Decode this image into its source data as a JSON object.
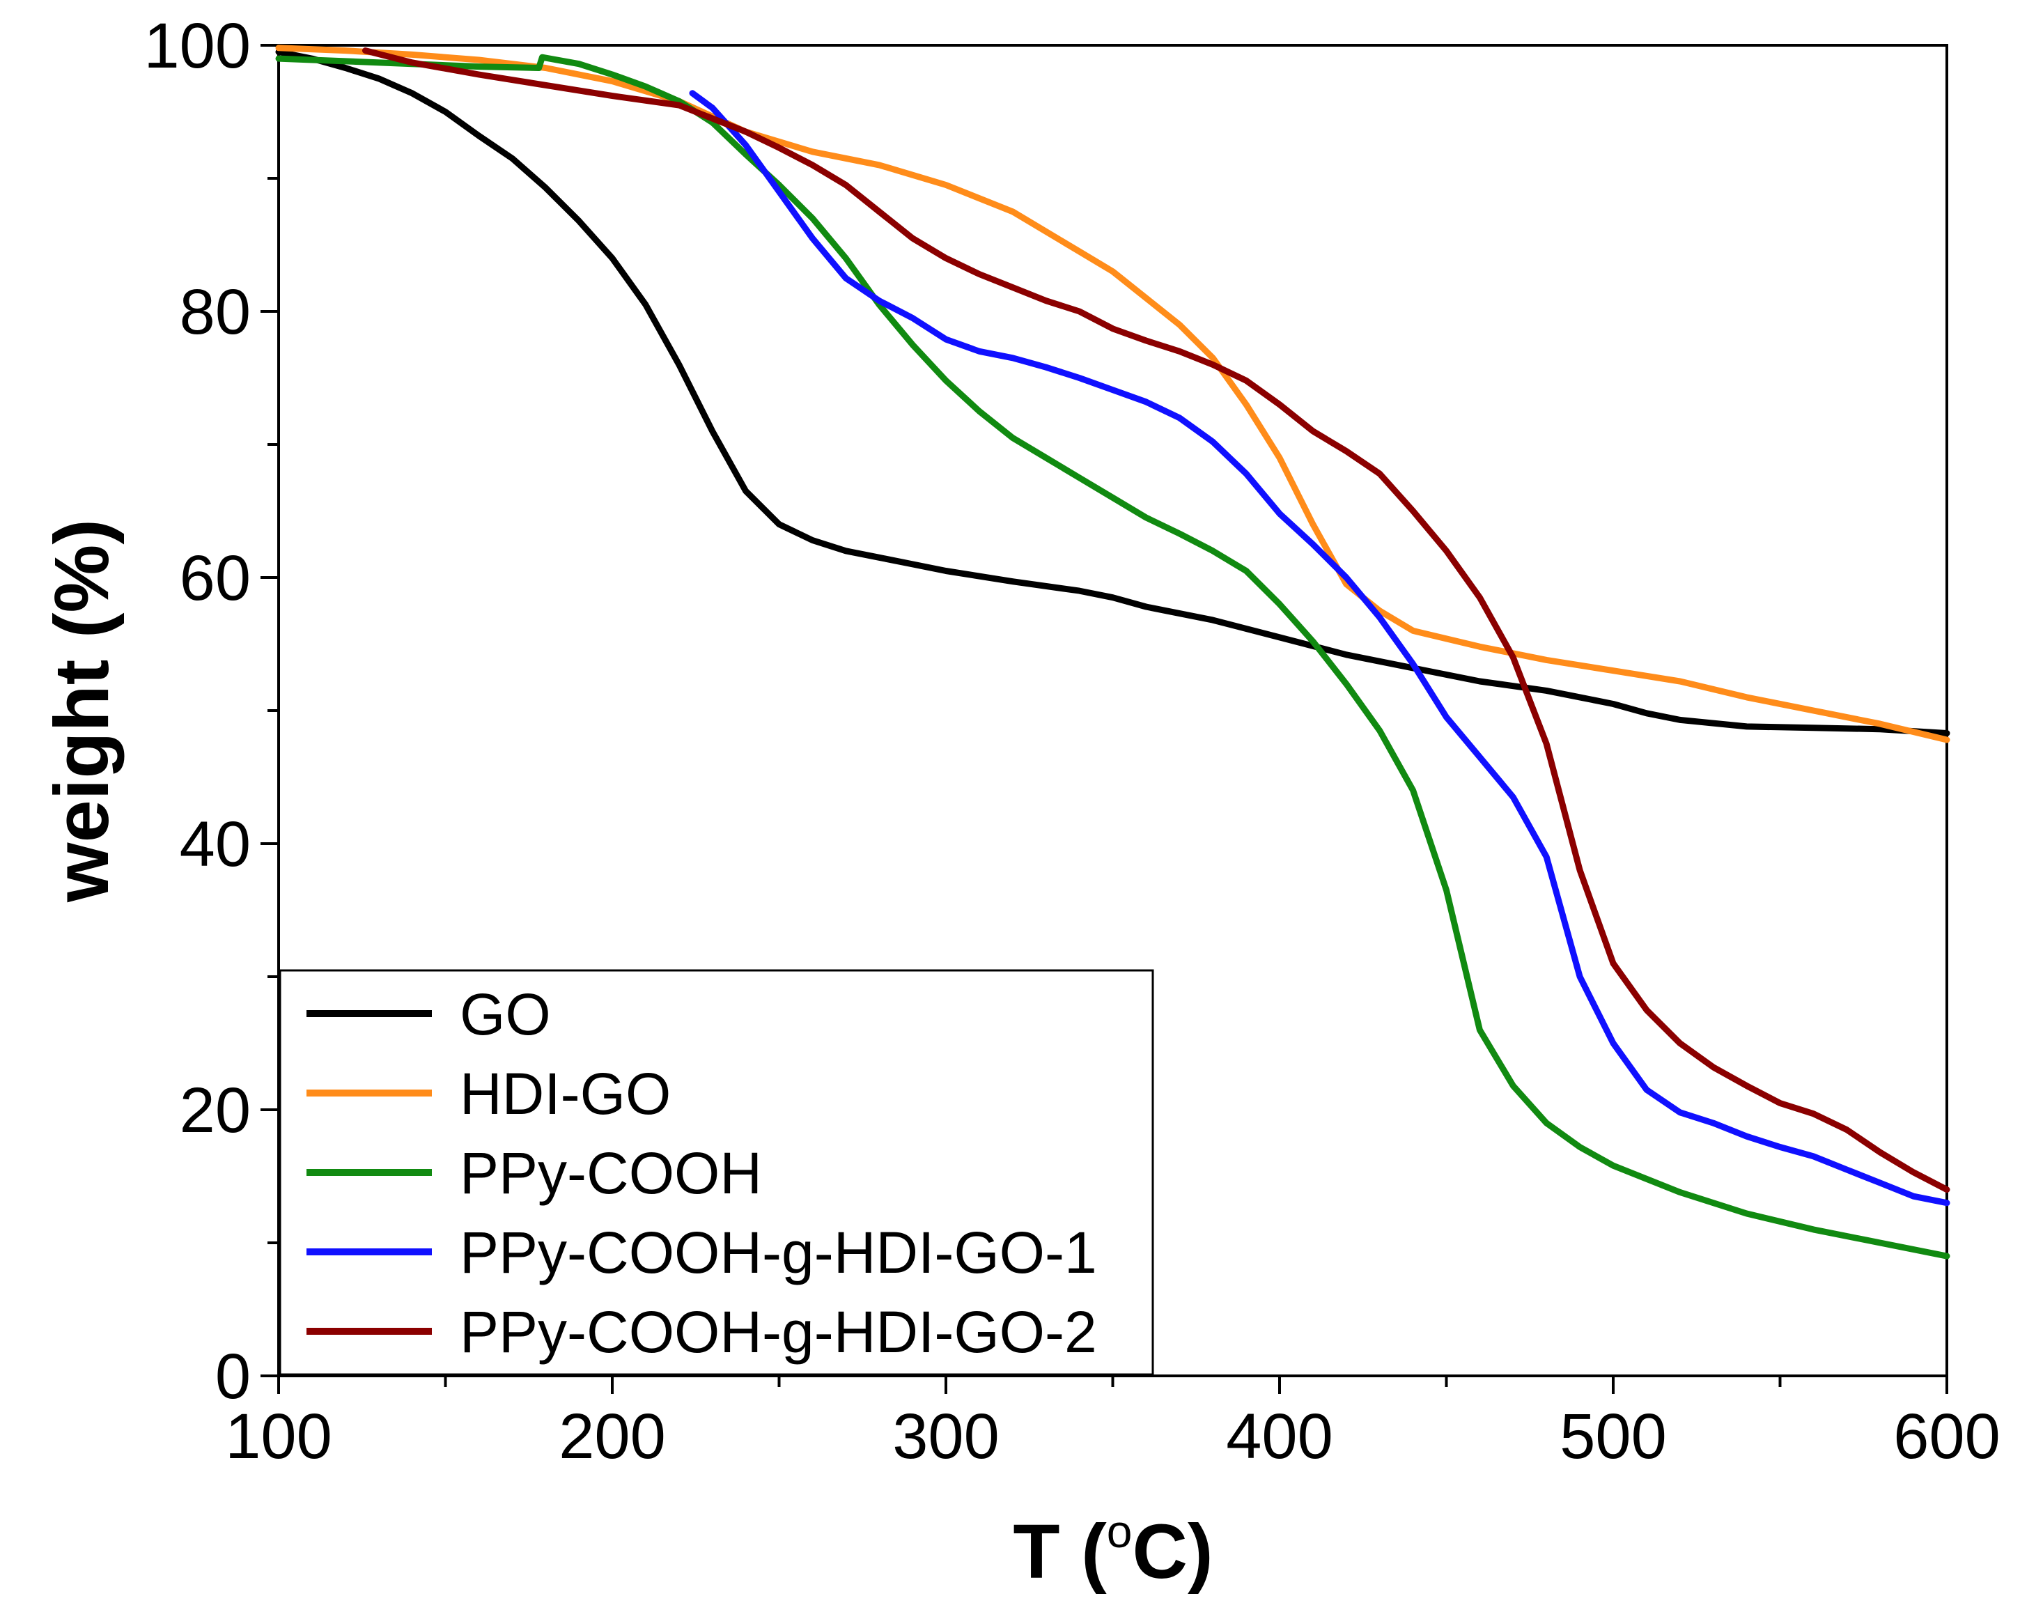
{
  "chart_data": {
    "type": "line",
    "title": "",
    "xlabel": "T (",
    "xlabel_sup": "o",
    "xlabel_unit": "C)",
    "ylabel": "weight (%)",
    "xlim": [
      100,
      600
    ],
    "ylim": [
      0,
      100
    ],
    "xticks": [
      100,
      200,
      300,
      400,
      500,
      600
    ],
    "yticks": [
      0,
      20,
      40,
      60,
      80,
      100
    ],
    "xtick_labels": [
      "100",
      "200",
      "300",
      "400",
      "500",
      "600"
    ],
    "ytick_labels": [
      "0",
      "20",
      "40",
      "60",
      "80",
      "100"
    ],
    "legend_position": "bottom-left",
    "series": [
      {
        "name": "GO",
        "color": "#000000",
        "points": [
          [
            100,
            99.5
          ],
          [
            110,
            99
          ],
          [
            120,
            98.3
          ],
          [
            130,
            97.5
          ],
          [
            140,
            96.4
          ],
          [
            150,
            95
          ],
          [
            160,
            93.2
          ],
          [
            170,
            91.5
          ],
          [
            180,
            89.3
          ],
          [
            190,
            86.8
          ],
          [
            200,
            84
          ],
          [
            210,
            80.5
          ],
          [
            220,
            76
          ],
          [
            230,
            71
          ],
          [
            240,
            66.5
          ],
          [
            250,
            64
          ],
          [
            260,
            62.8
          ],
          [
            270,
            62
          ],
          [
            280,
            61.5
          ],
          [
            290,
            61
          ],
          [
            300,
            60.5
          ],
          [
            320,
            59.7
          ],
          [
            340,
            59
          ],
          [
            350,
            58.5
          ],
          [
            360,
            57.8
          ],
          [
            380,
            56.8
          ],
          [
            400,
            55.5
          ],
          [
            420,
            54.2
          ],
          [
            440,
            53.2
          ],
          [
            460,
            52.2
          ],
          [
            480,
            51.5
          ],
          [
            490,
            51
          ],
          [
            500,
            50.5
          ],
          [
            510,
            49.8
          ],
          [
            520,
            49.3
          ],
          [
            540,
            48.8
          ],
          [
            560,
            48.7
          ],
          [
            580,
            48.6
          ],
          [
            600,
            48.3
          ]
        ]
      },
      {
        "name": "HDI-GO",
        "color": "#ff8c1a",
        "points": [
          [
            100,
            99.8
          ],
          [
            120,
            99.6
          ],
          [
            140,
            99.3
          ],
          [
            160,
            98.9
          ],
          [
            180,
            98.3
          ],
          [
            200,
            97.3
          ],
          [
            220,
            95.8
          ],
          [
            240,
            93.5
          ],
          [
            260,
            92
          ],
          [
            280,
            91
          ],
          [
            300,
            89.5
          ],
          [
            320,
            87.5
          ],
          [
            340,
            84.5
          ],
          [
            350,
            83
          ],
          [
            360,
            81
          ],
          [
            370,
            79
          ],
          [
            380,
            76.5
          ],
          [
            390,
            73
          ],
          [
            400,
            69
          ],
          [
            410,
            64
          ],
          [
            420,
            59.5
          ],
          [
            430,
            57.5
          ],
          [
            440,
            56
          ],
          [
            460,
            54.8
          ],
          [
            480,
            53.8
          ],
          [
            500,
            53
          ],
          [
            520,
            52.2
          ],
          [
            540,
            51
          ],
          [
            560,
            50
          ],
          [
            580,
            49
          ],
          [
            600,
            47.8
          ]
        ]
      },
      {
        "name": "PPy-COOH",
        "color": "#118a11",
        "points": [
          [
            100,
            99
          ],
          [
            120,
            98.8
          ],
          [
            140,
            98.6
          ],
          [
            160,
            98.4
          ],
          [
            178,
            98.3
          ],
          [
            179,
            99.1
          ],
          [
            190,
            98.6
          ],
          [
            200,
            97.8
          ],
          [
            210,
            96.9
          ],
          [
            220,
            95.8
          ],
          [
            230,
            94.2
          ],
          [
            240,
            91.8
          ],
          [
            250,
            89.5
          ],
          [
            260,
            87
          ],
          [
            270,
            84
          ],
          [
            280,
            80.5
          ],
          [
            290,
            77.5
          ],
          [
            300,
            74.8
          ],
          [
            310,
            72.5
          ],
          [
            320,
            70.5
          ],
          [
            330,
            69
          ],
          [
            340,
            67.5
          ],
          [
            350,
            66
          ],
          [
            360,
            64.5
          ],
          [
            370,
            63.3
          ],
          [
            380,
            62
          ],
          [
            390,
            60.5
          ],
          [
            400,
            58
          ],
          [
            410,
            55.2
          ],
          [
            420,
            52
          ],
          [
            430,
            48.5
          ],
          [
            440,
            44
          ],
          [
            450,
            36.5
          ],
          [
            460,
            26
          ],
          [
            470,
            21.8
          ],
          [
            480,
            19
          ],
          [
            490,
            17.2
          ],
          [
            500,
            15.8
          ],
          [
            520,
            13.8
          ],
          [
            540,
            12.2
          ],
          [
            560,
            11
          ],
          [
            580,
            10
          ],
          [
            600,
            9
          ]
        ]
      },
      {
        "name": "PPy-COOH-g-HDI-GO-1",
        "color": "#1010ff",
        "points": [
          [
            224,
            96.4
          ],
          [
            230,
            95.3
          ],
          [
            240,
            92.5
          ],
          [
            250,
            89
          ],
          [
            260,
            85.5
          ],
          [
            270,
            82.5
          ],
          [
            280,
            80.8
          ],
          [
            290,
            79.5
          ],
          [
            300,
            77.9
          ],
          [
            310,
            77
          ],
          [
            320,
            76.5
          ],
          [
            330,
            75.8
          ],
          [
            340,
            75
          ],
          [
            350,
            74.1
          ],
          [
            360,
            73.2
          ],
          [
            370,
            72
          ],
          [
            380,
            70.2
          ],
          [
            390,
            67.8
          ],
          [
            400,
            64.8
          ],
          [
            410,
            62.5
          ],
          [
            420,
            60
          ],
          [
            430,
            57
          ],
          [
            440,
            53.5
          ],
          [
            450,
            49.5
          ],
          [
            460,
            46.5
          ],
          [
            470,
            43.5
          ],
          [
            480,
            39
          ],
          [
            490,
            30
          ],
          [
            500,
            25
          ],
          [
            510,
            21.5
          ],
          [
            520,
            19.8
          ],
          [
            530,
            19
          ],
          [
            540,
            18
          ],
          [
            550,
            17.2
          ],
          [
            560,
            16.5
          ],
          [
            570,
            15.5
          ],
          [
            580,
            14.5
          ],
          [
            590,
            13.5
          ],
          [
            600,
            13
          ]
        ]
      },
      {
        "name": "PPy-COOH-g-HDI-GO-2",
        "color": "#8b0000",
        "points": [
          [
            126,
            99.6
          ],
          [
            140,
            98.7
          ],
          [
            160,
            97.8
          ],
          [
            180,
            97
          ],
          [
            200,
            96.2
          ],
          [
            220,
            95.5
          ],
          [
            240,
            93.5
          ],
          [
            250,
            92.3
          ],
          [
            260,
            91
          ],
          [
            270,
            89.5
          ],
          [
            280,
            87.5
          ],
          [
            290,
            85.5
          ],
          [
            300,
            84
          ],
          [
            310,
            82.8
          ],
          [
            320,
            81.8
          ],
          [
            330,
            80.8
          ],
          [
            340,
            80
          ],
          [
            350,
            78.7
          ],
          [
            360,
            77.8
          ],
          [
            370,
            77
          ],
          [
            380,
            76
          ],
          [
            390,
            74.8
          ],
          [
            400,
            73
          ],
          [
            410,
            71
          ],
          [
            420,
            69.5
          ],
          [
            430,
            67.8
          ],
          [
            440,
            65
          ],
          [
            450,
            62
          ],
          [
            460,
            58.5
          ],
          [
            470,
            54
          ],
          [
            480,
            47.5
          ],
          [
            490,
            38
          ],
          [
            500,
            31
          ],
          [
            510,
            27.5
          ],
          [
            520,
            25
          ],
          [
            530,
            23.2
          ],
          [
            540,
            21.8
          ],
          [
            550,
            20.5
          ],
          [
            560,
            19.7
          ],
          [
            570,
            18.5
          ],
          [
            580,
            16.8
          ],
          [
            590,
            15.3
          ],
          [
            600,
            14
          ]
        ]
      }
    ]
  }
}
